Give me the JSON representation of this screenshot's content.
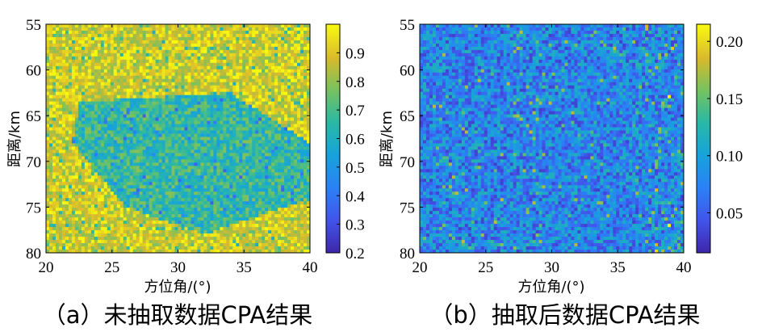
{
  "chart_data": [
    {
      "type": "heatmap",
      "caption": "（a）未抽取数据CPA结果",
      "xlabel": "方位角/(°)",
      "ylabel": "距离/km",
      "xlim": [
        20,
        40
      ],
      "ylim": [
        80,
        55
      ],
      "x_ticks": [
        "20",
        "25",
        "30",
        "35",
        "40"
      ],
      "y_ticks": [
        "55",
        "60",
        "65",
        "70",
        "75",
        "80"
      ],
      "colorbar": {
        "range": [
          0.2,
          1.0
        ],
        "ticks": [
          "0.2",
          "0.3",
          "0.4",
          "0.5",
          "0.6",
          "0.7",
          "0.8",
          "0.9"
        ]
      },
      "background_level": 0.88,
      "region": {
        "level": 0.55,
        "description_points": [
          [
            22.5,
            63.5
          ],
          [
            34,
            62.5
          ],
          [
            40,
            68
          ],
          [
            40,
            74
          ],
          [
            32,
            78
          ],
          [
            26,
            75
          ],
          [
            22,
            68
          ]
        ]
      }
    },
    {
      "type": "heatmap",
      "caption": "（b）抽取后数据CPA结果",
      "xlabel": "方位角/(°)",
      "ylabel": "距离/km",
      "xlim": [
        20,
        40
      ],
      "ylim": [
        80,
        55
      ],
      "x_ticks": [
        "20",
        "25",
        "30",
        "35",
        "40"
      ],
      "y_ticks": [
        "55",
        "60",
        "65",
        "70",
        "75",
        "80"
      ],
      "colorbar": {
        "range": [
          0.015,
          0.215
        ],
        "ticks": [
          "0.05",
          "0.10",
          "0.15",
          "0.20"
        ]
      },
      "background_level": 0.07
    }
  ]
}
